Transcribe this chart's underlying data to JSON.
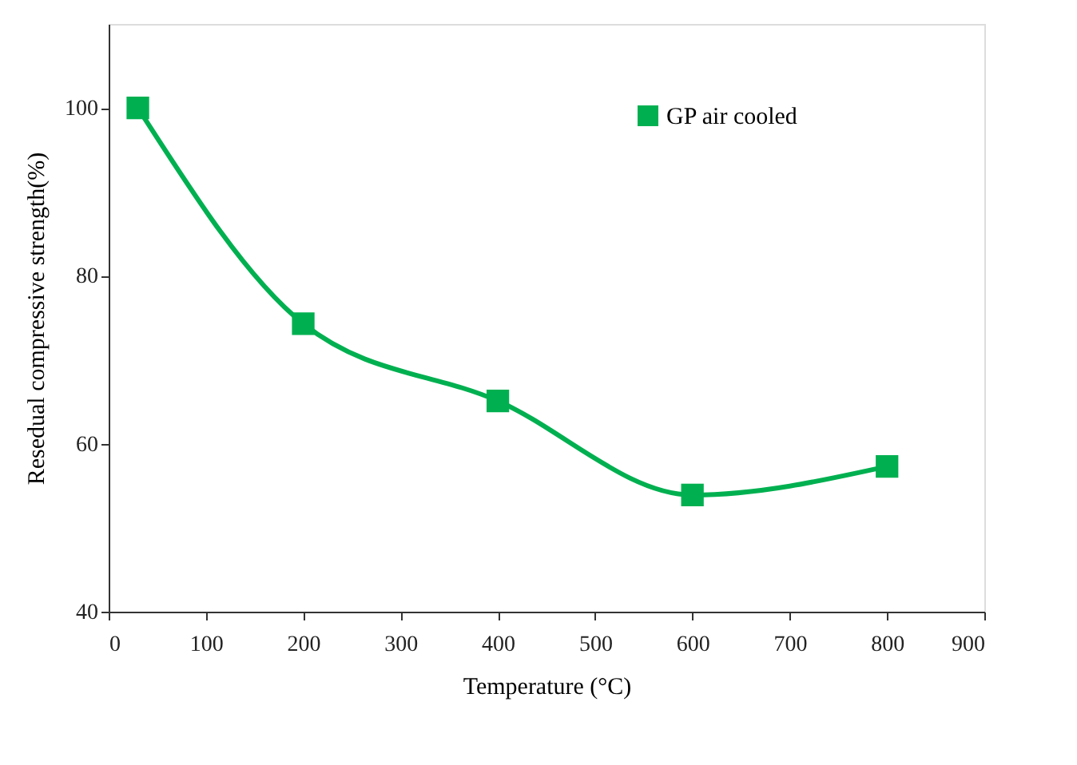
{
  "chart_data": {
    "type": "line",
    "xlabel": "Temperature  (°C)",
    "ylabel": "Resedual compressive strength(%)",
    "x": [
      30,
      200,
      400,
      600,
      800
    ],
    "series": [
      {
        "name": "GP air cooled",
        "color": "#00b050",
        "values": [
          100,
          74.3,
          65.1,
          53.9,
          57.3
        ]
      }
    ],
    "xlim": [
      0,
      900
    ],
    "xticks": [
      0,
      100,
      200,
      300,
      400,
      500,
      600,
      700,
      800,
      900
    ],
    "ylim": [
      40,
      110
    ],
    "yticks": [
      40,
      60,
      80,
      100
    ],
    "grid": false,
    "legend": "top",
    "marker": "square",
    "line_style": "solid"
  }
}
